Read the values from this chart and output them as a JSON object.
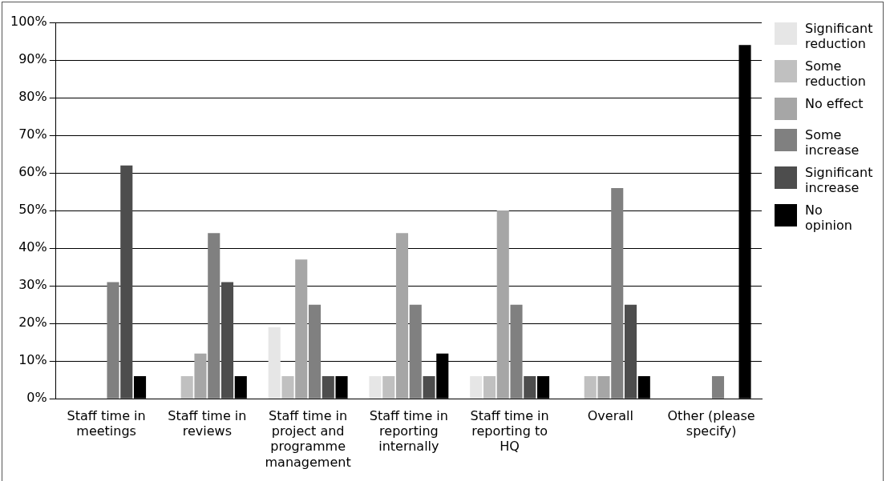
{
  "chart_data": {
    "type": "bar",
    "categories": [
      "Staff time in meetings",
      "Staff time in reviews",
      "Staff time in project and programme management",
      "Staff time in reporting internally",
      "Staff time in reporting to HQ",
      "Overall",
      "Other (please specify)"
    ],
    "series": [
      {
        "name": "Significant reduction",
        "color": "#e6e6e6",
        "values": [
          0,
          0,
          19,
          6,
          6,
          0,
          0
        ]
      },
      {
        "name": "Some reduction",
        "color": "#c0c0c0",
        "values": [
          0,
          6,
          6,
          6,
          6,
          6,
          0
        ]
      },
      {
        "name": "No effect",
        "color": "#a6a6a6",
        "values": [
          0,
          12,
          37,
          44,
          50,
          6,
          0
        ]
      },
      {
        "name": "Some increase",
        "color": "#808080",
        "values": [
          31,
          44,
          25,
          25,
          25,
          56,
          6
        ]
      },
      {
        "name": "Significant increase",
        "color": "#4d4d4d",
        "values": [
          62,
          31,
          6,
          6,
          6,
          25,
          0
        ]
      },
      {
        "name": "No opinion",
        "color": "#000000",
        "values": [
          6,
          6,
          6,
          12,
          6,
          6,
          94
        ]
      }
    ],
    "ylim": [
      0,
      100
    ],
    "yticks": [
      {
        "value": 0,
        "label": "0%"
      },
      {
        "value": 10,
        "label": "10%"
      },
      {
        "value": 20,
        "label": "20%"
      },
      {
        "value": 30,
        "label": "30%"
      },
      {
        "value": 40,
        "label": "40%"
      },
      {
        "value": 50,
        "label": "50%"
      },
      {
        "value": 60,
        "label": "60%"
      },
      {
        "value": 70,
        "label": "70%"
      },
      {
        "value": 80,
        "label": "80%"
      },
      {
        "value": 90,
        "label": "90%"
      },
      {
        "value": 100,
        "label": "100%"
      }
    ],
    "grid": "y",
    "legend": "right"
  }
}
